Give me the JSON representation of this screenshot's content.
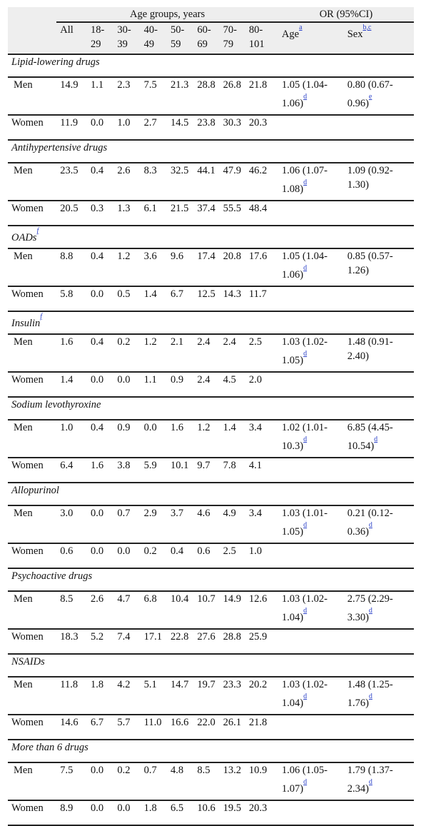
{
  "header": {
    "age_groups_label": "Age groups, years",
    "or_label": "OR (95%CI)",
    "columns": [
      "All",
      "18-\n29",
      "30-\n39",
      "40-\n49",
      "50-\n59",
      "60-\n69",
      "70-\n79",
      "80-\n101"
    ],
    "age_col": "Age",
    "age_sup": "a",
    "sex_col": "Sex",
    "sex_sup": "b,c"
  },
  "sections": [
    {
      "title": "Lipid-lowering drugs",
      "title_sup": "",
      "men": {
        "label": "Men",
        "values": [
          "14.9",
          "1.1",
          "2.3",
          "7.5",
          "21.3",
          "28.8",
          "26.8",
          "21.8"
        ],
        "or_age": "1.05 (1.04-1.06)",
        "or_age_sup": "d",
        "or_sex": "0.80 (0.67-0.96)",
        "or_sex_sup": "e"
      },
      "women": {
        "label": "Women",
        "values": [
          "11.9",
          "0.0",
          "1.0",
          "2.7",
          "14.5",
          "23.8",
          "30.3",
          "20.3"
        ]
      }
    },
    {
      "title": "Antihypertensive drugs",
      "title_sup": "",
      "men": {
        "label": "Men",
        "values": [
          "23.5",
          "0.4",
          "2.6",
          "8.3",
          "32.5",
          "44.1",
          "47.9",
          "46.2"
        ],
        "or_age": "1.06 (1.07-1.08)",
        "or_age_sup": "d",
        "or_sex": "1.09 (0.92-1.30)",
        "or_sex_sup": ""
      },
      "women": {
        "label": "Women",
        "values": [
          "20.5",
          "0.3",
          "1.3",
          "6.1",
          "21.5",
          "37.4",
          "55.5",
          "48.4"
        ]
      }
    },
    {
      "title": "OADs",
      "title_sup": "f",
      "men": {
        "label": "Men",
        "values": [
          "8.8",
          "0.4",
          "1.2",
          "3.6",
          "9.6",
          "17.4",
          "20.8",
          "17.6"
        ],
        "or_age": "1.05 (1.04-1.06)",
        "or_age_sup": "d",
        "or_sex": "0.85 (0.57-1.26)",
        "or_sex_sup": ""
      },
      "women": {
        "label": "Women",
        "values": [
          "5.8",
          "0.0",
          "0.5",
          "1.4",
          "6.7",
          "12.5",
          "14.3",
          "11.7"
        ]
      }
    },
    {
      "title": "Insulin",
      "title_sup": "f",
      "men": {
        "label": "Men",
        "values": [
          "1.6",
          "0.4",
          "0.2",
          "1.2",
          "2.1",
          "2.4",
          "2.4",
          "2.5"
        ],
        "or_age": "1.03 (1.02-1.05)",
        "or_age_sup": "d",
        "or_sex": "1.48 (0.91-2.40)",
        "or_sex_sup": ""
      },
      "women": {
        "label": "Women",
        "values": [
          "1.4",
          "0.0",
          "0.0",
          "1.1",
          "0.9",
          "2.4",
          "4.5",
          "2.0"
        ]
      }
    },
    {
      "title": "Sodium levothyroxine",
      "title_sup": "",
      "men": {
        "label": "Men",
        "values": [
          "1.0",
          "0.4",
          "0.9",
          "0.0",
          "1.6",
          "1.2",
          "1.4",
          "3.4"
        ],
        "or_age": "1.02 (1.01-10.3)",
        "or_age_sup": "d",
        "or_sex": "6.85 (4.45-10.54)",
        "or_sex_sup": "d"
      },
      "women": {
        "label": "Women",
        "values": [
          "6.4",
          "1.6",
          "3.8",
          "5.9",
          "10.1",
          "9.7",
          "7.8",
          "4.1"
        ]
      }
    },
    {
      "title": "Allopurinol",
      "title_sup": "",
      "men": {
        "label": "Men",
        "values": [
          "3.0",
          "0.0",
          "0.7",
          "2.9",
          "3.7",
          "4.6",
          "4.9",
          "3.4"
        ],
        "or_age": "1.03 (1.01-1.05)",
        "or_age_sup": "d",
        "or_sex": "0.21 (0.12-0.36)",
        "or_sex_sup": "d"
      },
      "women": {
        "label": "Women",
        "values": [
          "0.6",
          "0.0",
          "0.0",
          "0.2",
          "0.4",
          "0.6",
          "2.5",
          "1.0"
        ]
      }
    },
    {
      "title": "Psychoactive drugs",
      "title_sup": "",
      "men": {
        "label": "Men",
        "values": [
          "8.5",
          "2.6",
          "4.7",
          "6.8",
          "10.4",
          "10.7",
          "14.9",
          "12.6"
        ],
        "or_age": "1.03 (1.02-1.04)",
        "or_age_sup": "d",
        "or_sex": "2.75 (2.29-3.30)",
        "or_sex_sup": "d"
      },
      "women": {
        "label": "Women",
        "values": [
          "18.3",
          "5.2",
          "7.4",
          "17.1",
          "22.8",
          "27.6",
          "28.8",
          "25.9"
        ]
      }
    },
    {
      "title": "NSAIDs",
      "title_sup": "",
      "men": {
        "label": "Men",
        "values": [
          "11.8",
          "1.8",
          "4.2",
          "5.1",
          "14.7",
          "19.7",
          "23.3",
          "20.2"
        ],
        "or_age": "1.03 (1.02-1.04)",
        "or_age_sup": "d",
        "or_sex": "1.48 (1.25-1.76)",
        "or_sex_sup": "d"
      },
      "women": {
        "label": "Women",
        "values": [
          "14.6",
          "6.7",
          "5.7",
          "11.0",
          "16.6",
          "22.0",
          "26.1",
          "21.8"
        ]
      }
    },
    {
      "title": "More than 6 drugs",
      "title_sup": "",
      "men": {
        "label": "Men",
        "values": [
          "7.5",
          "0.0",
          "0.2",
          "0.7",
          "4.8",
          "8.5",
          "13.2",
          "10.9"
        ],
        "or_age": "1.06 (1.05-1.07)",
        "or_age_sup": "d",
        "or_sex": "1.79 (1.37-2.34)",
        "or_sex_sup": "d"
      },
      "women": {
        "label": "Women",
        "values": [
          "8.9",
          "0.0",
          "0.0",
          "1.8",
          "6.5",
          "10.6",
          "19.5",
          "20.3"
        ]
      }
    }
  ]
}
